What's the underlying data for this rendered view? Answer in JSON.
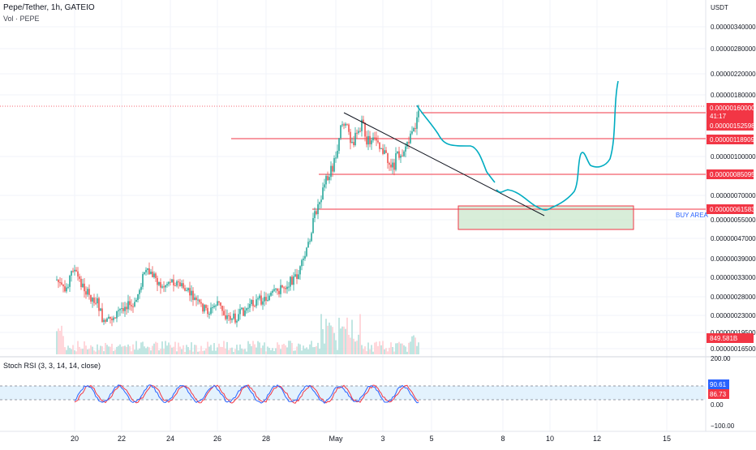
{
  "header": {
    "symbol_title": "Pepe/Tether, 1h, GATEIO",
    "volume_label": "Vol · PEPE",
    "currency": "USDT"
  },
  "price_axis": {
    "ticks": [
      "0.00000340000",
      "0.00000280000",
      "0.00000220000",
      "0.00000180000",
      "0.00000100000",
      "0.00000070000",
      "0.00000055000",
      "0.00000047000",
      "0.00000039000",
      "0.00000033000",
      "0.00000028000",
      "0.00000023000",
      "0.00000019500",
      "0.00000016500"
    ]
  },
  "price_tags": [
    {
      "label": "0.00000160000",
      "color": "#f23645"
    },
    {
      "label": "41:17",
      "color": "#f23645"
    },
    {
      "label": "0.00000152598",
      "color": "#f23645"
    },
    {
      "label": "0.00000118909",
      "color": "#f23645"
    },
    {
      "label": "0.00000085095",
      "color": "#f23645"
    },
    {
      "label": "0.00000061583",
      "color": "#f23645"
    },
    {
      "label": "849.581B",
      "color": "#f23645"
    }
  ],
  "annotations": {
    "buy_area_label": "BUY AREA"
  },
  "oscillator": {
    "label": "Stoch RSI (3, 3, 14, 14, close)",
    "axis_ticks": [
      "200.00",
      "0.00",
      "−100.00"
    ],
    "tags": [
      {
        "label": "90.61",
        "color": "#2962ff"
      },
      {
        "label": "86.73",
        "color": "#f23645"
      }
    ]
  },
  "time_axis": {
    "labels": [
      "20",
      "22",
      "24",
      "26",
      "28",
      "May",
      "3",
      "5",
      "8",
      "10",
      "12",
      "15"
    ]
  },
  "colors": {
    "up": "#26a69a",
    "down": "#ef5350",
    "level": "#f23645",
    "trendline": "#131722",
    "projection": "#00acc1",
    "buy_zone": "#c8e6c9",
    "stoch_k": "#2962ff",
    "stoch_d": "#f23645"
  },
  "chart_data": {
    "type": "candlestick",
    "symbol": "Pepe/Tether",
    "timeframe": "1h",
    "exchange": "GATEIO",
    "y_scale": "log",
    "last_price": 1.52598e-06,
    "horizontal_levels": [
      1.52598e-06,
      1.18909e-06,
      8.5095e-07,
      6.1583e-07
    ],
    "buy_area": {
      "price_low": 5e-07,
      "price_high": 6e-07,
      "label": "BUY AREA"
    },
    "volume_last": "849.581B",
    "stoch_rsi": {
      "k": 90.61,
      "d": 86.73,
      "params": "3, 3, 14, 14, close"
    }
  }
}
